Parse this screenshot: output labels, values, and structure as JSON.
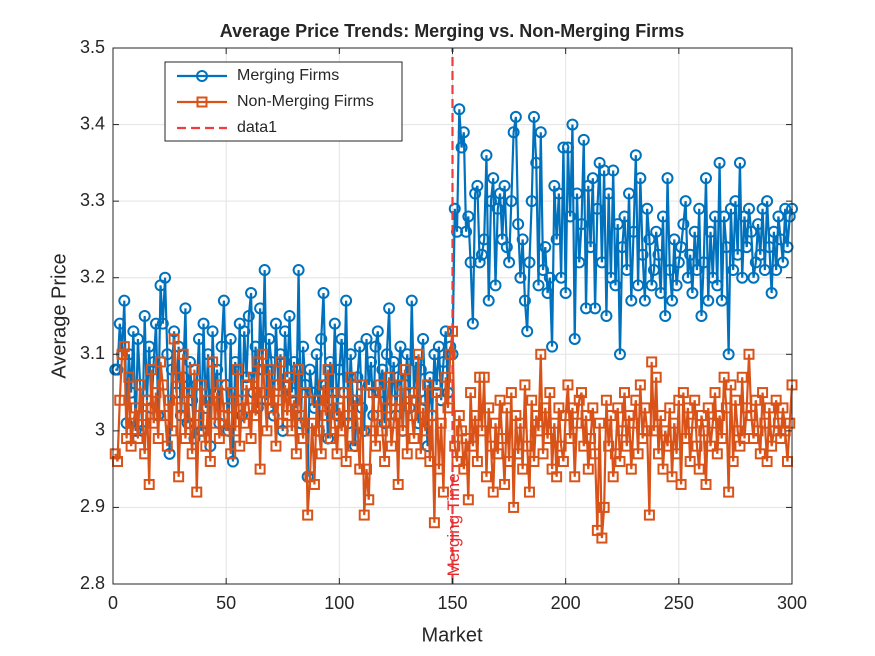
{
  "chart_data": {
    "type": "line",
    "title": "Average Price Trends: Merging vs. Non-Merging Firms",
    "xlabel": "Market",
    "ylabel": "Average Price",
    "xlim": [
      0,
      300
    ],
    "xticks": [
      0,
      50,
      100,
      150,
      200,
      250,
      300
    ],
    "ylim": [
      2.8,
      3.5
    ],
    "yticks": [
      2.8,
      2.9,
      3,
      3.1,
      3.2,
      3.3,
      3.4,
      3.5
    ],
    "grid": true,
    "legend": "northwest",
    "annotation": {
      "text": "Merging Time",
      "x": 150,
      "y": 2.81,
      "rotation": 90,
      "color": "#e8282b"
    },
    "x": [
      1,
      2,
      3,
      4,
      5,
      6,
      7,
      8,
      9,
      10,
      11,
      12,
      13,
      14,
      15,
      16,
      17,
      18,
      19,
      20,
      21,
      22,
      23,
      24,
      25,
      26,
      27,
      28,
      29,
      30,
      31,
      32,
      33,
      34,
      35,
      36,
      37,
      38,
      39,
      40,
      41,
      42,
      43,
      44,
      45,
      46,
      47,
      48,
      49,
      50,
      51,
      52,
      53,
      54,
      55,
      56,
      57,
      58,
      59,
      60,
      61,
      62,
      63,
      64,
      65,
      66,
      67,
      68,
      69,
      70,
      71,
      72,
      73,
      74,
      75,
      76,
      77,
      78,
      79,
      80,
      81,
      82,
      83,
      84,
      85,
      86,
      87,
      88,
      89,
      90,
      91,
      92,
      93,
      94,
      95,
      96,
      97,
      98,
      99,
      100,
      101,
      102,
      103,
      104,
      105,
      106,
      107,
      108,
      109,
      110,
      111,
      112,
      113,
      114,
      115,
      116,
      117,
      118,
      119,
      120,
      121,
      122,
      123,
      124,
      125,
      126,
      127,
      128,
      129,
      130,
      131,
      132,
      133,
      134,
      135,
      136,
      137,
      138,
      139,
      140,
      141,
      142,
      143,
      144,
      145,
      146,
      147,
      148,
      149,
      150,
      151,
      152,
      153,
      154,
      155,
      156,
      157,
      158,
      159,
      160,
      161,
      162,
      163,
      164,
      165,
      166,
      167,
      168,
      169,
      170,
      171,
      172,
      173,
      174,
      175,
      176,
      177,
      178,
      179,
      180,
      181,
      182,
      183,
      184,
      185,
      186,
      187,
      188,
      189,
      190,
      191,
      192,
      193,
      194,
      195,
      196,
      197,
      198,
      199,
      200,
      201,
      202,
      203,
      204,
      205,
      206,
      207,
      208,
      209,
      210,
      211,
      212,
      213,
      214,
      215,
      216,
      217,
      218,
      219,
      220,
      221,
      222,
      223,
      224,
      225,
      226,
      227,
      228,
      229,
      230,
      231,
      232,
      233,
      234,
      235,
      236,
      237,
      238,
      239,
      240,
      241,
      242,
      243,
      244,
      245,
      246,
      247,
      248,
      249,
      250,
      251,
      252,
      253,
      254,
      255,
      256,
      257,
      258,
      259,
      260,
      261,
      262,
      263,
      264,
      265,
      266,
      267,
      268,
      269,
      270,
      271,
      272,
      273,
      274,
      275,
      276,
      277,
      278,
      279,
      280,
      281,
      282,
      283,
      284,
      285,
      286,
      287,
      288,
      289,
      290,
      291,
      292,
      293,
      294,
      295,
      296,
      297,
      298,
      299,
      300
    ],
    "series": [
      {
        "name": "Merging Firms",
        "color": "#0072BD",
        "marker": "circle",
        "values": [
          3.08,
          3.08,
          3.14,
          3.1,
          3.17,
          3.01,
          3.1,
          3.05,
          3.13,
          3.0,
          3.12,
          3.06,
          3.0,
          3.15,
          3.04,
          3.11,
          3.03,
          3.09,
          3.14,
          3.02,
          3.19,
          3.14,
          3.2,
          3.1,
          2.97,
          3.08,
          3.13,
          3.05,
          3.11,
          3.02,
          3.07,
          3.16,
          3.01,
          3.09,
          3.04,
          2.99,
          3.06,
          3.12,
          3.0,
          3.14,
          3.03,
          3.1,
          2.98,
          3.13,
          3.05,
          3.08,
          3.01,
          3.11,
          3.17,
          3.06,
          3.0,
          3.12,
          2.96,
          3.09,
          3.04,
          3.14,
          3.02,
          3.13,
          3.07,
          3.15,
          3.18,
          3.05,
          3.11,
          3.03,
          3.16,
          3.08,
          3.21,
          3.04,
          3.12,
          3.09,
          3.02,
          3.14,
          3.06,
          3.1,
          3.0,
          3.13,
          3.07,
          3.15,
          3.05,
          3.09,
          3.03,
          3.21,
          3.01,
          3.11,
          3.06,
          2.94,
          3.08,
          3.05,
          3.03,
          3.1,
          3.0,
          3.12,
          3.18,
          3.06,
          2.99,
          3.09,
          3.04,
          3.14,
          3.02,
          3.08,
          3.12,
          3.05,
          3.17,
          3.01,
          3.1,
          3.04,
          2.98,
          3.07,
          3.11,
          3.03,
          3.0,
          3.12,
          3.06,
          3.09,
          3.02,
          3.11,
          3.13,
          3.05,
          3.08,
          3.01,
          3.1,
          3.16,
          3.04,
          3.09,
          3.02,
          3.07,
          3.11,
          3.0,
          3.06,
          3.1,
          3.03,
          3.17,
          3.05,
          3.09,
          3.01,
          3.08,
          3.12,
          3.04,
          2.98,
          3.07,
          3.02,
          3.1,
          3.06,
          3.11,
          3.04,
          3.09,
          3.13,
          3.05,
          3.11,
          3.1,
          3.29,
          3.26,
          3.42,
          3.37,
          3.39,
          3.26,
          3.28,
          3.22,
          3.14,
          3.31,
          3.32,
          3.22,
          3.23,
          3.25,
          3.36,
          3.17,
          3.3,
          3.33,
          3.19,
          3.29,
          3.31,
          3.25,
          3.32,
          3.24,
          3.22,
          3.3,
          3.39,
          3.41,
          3.27,
          3.2,
          3.25,
          3.17,
          3.13,
          3.22,
          3.3,
          3.41,
          3.35,
          3.19,
          3.39,
          3.21,
          3.24,
          3.18,
          3.2,
          3.11,
          3.32,
          3.25,
          3.31,
          3.2,
          3.37,
          3.18,
          3.37,
          3.28,
          3.4,
          3.12,
          3.31,
          3.22,
          3.27,
          3.38,
          3.16,
          3.32,
          3.24,
          3.33,
          3.16,
          3.29,
          3.35,
          3.22,
          3.34,
          3.15,
          3.31,
          3.2,
          3.34,
          3.19,
          3.27,
          3.1,
          3.24,
          3.28,
          3.21,
          3.31,
          3.17,
          3.26,
          3.36,
          3.19,
          3.33,
          3.23,
          3.17,
          3.29,
          3.25,
          3.19,
          3.21,
          3.26,
          3.23,
          3.18,
          3.28,
          3.15,
          3.33,
          3.21,
          3.17,
          3.25,
          3.19,
          3.22,
          3.24,
          3.27,
          3.3,
          3.2,
          3.23,
          3.18,
          3.26,
          3.21,
          3.29,
          3.15,
          3.22,
          3.33,
          3.17,
          3.26,
          3.2,
          3.28,
          3.19,
          3.35,
          3.17,
          3.28,
          3.24,
          3.1,
          3.29,
          3.21,
          3.3,
          3.23,
          3.35,
          3.2,
          3.28,
          3.24,
          3.29,
          3.26,
          3.2,
          3.22,
          3.27,
          3.23,
          3.29,
          3.21,
          3.3,
          3.24,
          3.18,
          3.26,
          3.21,
          3.28,
          3.25,
          3.22,
          3.29,
          3.24,
          3.28,
          3.29
        ]
      },
      {
        "name": "Non-Merging Firms",
        "color": "#D95319",
        "marker": "square",
        "values": [
          2.97,
          2.96,
          3.04,
          3.1,
          3.11,
          2.99,
          3.07,
          2.98,
          3.01,
          3.03,
          2.99,
          3.06,
          3.02,
          2.97,
          3.04,
          2.93,
          3.08,
          3.01,
          3.05,
          2.99,
          3.09,
          3.06,
          3.02,
          2.98,
          3.04,
          3.0,
          3.12,
          3.07,
          2.94,
          3.03,
          3.1,
          2.99,
          3.05,
          3.01,
          2.97,
          3.08,
          2.92,
          3.02,
          3.06,
          3.0,
          2.98,
          3.04,
          2.96,
          3.09,
          3.01,
          3.05,
          2.99,
          3.06,
          3.02,
          3.0,
          3.03,
          2.97,
          3.05,
          3.0,
          3.08,
          2.98,
          3.04,
          3.01,
          3.06,
          3.03,
          2.99,
          3.07,
          3.02,
          3.09,
          2.95,
          3.1,
          3.05,
          3.0,
          3.08,
          3.03,
          3.06,
          2.98,
          3.04,
          3.09,
          3.01,
          3.06,
          3.02,
          3.07,
          3.0,
          3.04,
          2.97,
          3.08,
          3.02,
          2.99,
          3.05,
          2.89,
          2.94,
          3.01,
          2.93,
          3.04,
          3.0,
          2.97,
          3.06,
          3.02,
          3.08,
          2.99,
          3.05,
          3.01,
          2.97,
          3.03,
          3.0,
          3.05,
          2.96,
          3.02,
          3.07,
          2.98,
          3.04,
          3.01,
          2.95,
          3.06,
          2.89,
          2.95,
          2.91,
          3.0,
          3.05,
          2.98,
          3.02,
          3.06,
          3.0,
          2.96,
          3.03,
          3.07,
          2.98,
          3.01,
          3.04,
          2.93,
          3.06,
          3.0,
          3.08,
          2.97,
          3.05,
          3.02,
          2.99,
          3.04,
          3.1,
          2.97,
          3.03,
          3.0,
          3.06,
          2.96,
          3.02,
          2.88,
          3.05,
          2.95,
          3.01,
          2.92,
          3.07,
          3.03,
          3.1,
          3.13,
          2.98,
          2.96,
          3.02,
          3.0,
          2.95,
          2.99,
          2.91,
          3.05,
          2.98,
          3.02,
          2.96,
          3.07,
          3.0,
          3.07,
          2.94,
          3.03,
          2.98,
          2.92,
          3.01,
          2.97,
          3.04,
          2.99,
          2.93,
          3.03,
          2.96,
          3.05,
          2.9,
          3.02,
          2.97,
          3.01,
          2.95,
          3.06,
          2.98,
          2.92,
          3.04,
          2.96,
          3.02,
          3.0,
          3.1,
          2.97,
          3.03,
          2.99,
          3.05,
          2.95,
          3.01,
          2.94,
          3.03,
          2.98,
          2.96,
          3.02,
          3.06,
          2.99,
          3.03,
          2.94,
          3.01,
          3.04,
          3.05,
          2.98,
          3.02,
          2.95,
          2.99,
          3.03,
          2.97,
          2.87,
          3.01,
          2.86,
          2.9,
          3.04,
          2.98,
          3.02,
          2.94,
          2.97,
          3.03,
          2.96,
          3.0,
          3.05,
          2.98,
          3.02,
          2.95,
          3.01,
          3.04,
          2.97,
          3.06,
          2.99,
          3.03,
          3.0,
          2.89,
          3.09,
          3.0,
          3.07,
          2.97,
          3.02,
          2.95,
          3.0,
          2.98,
          3.03,
          2.94,
          3.01,
          2.97,
          3.04,
          2.93,
          3.05,
          2.99,
          3.03,
          2.96,
          3.01,
          3.04,
          2.98,
          2.95,
          3.02,
          3.0,
          2.93,
          3.03,
          2.98,
          3.01,
          3.05,
          2.97,
          3.02,
          2.99,
          3.07,
          3.03,
          2.92,
          3.06,
          2.96,
          3.04,
          3.0,
          2.98,
          3.07,
          2.99,
          3.03,
          3.1,
          3.02,
          2.99,
          3.04,
          3.0,
          2.97,
          3.05,
          3.01,
          2.96,
          3.03,
          2.98,
          3.0,
          3.04,
          3.01,
          2.99,
          3.03,
          3.0,
          2.96,
          3.01,
          3.06
        ]
      },
      {
        "name": "data1",
        "color": "#F03C3C",
        "line_style": "dashed",
        "x": [
          150,
          150
        ],
        "values": [
          2.8,
          3.5
        ]
      }
    ]
  }
}
